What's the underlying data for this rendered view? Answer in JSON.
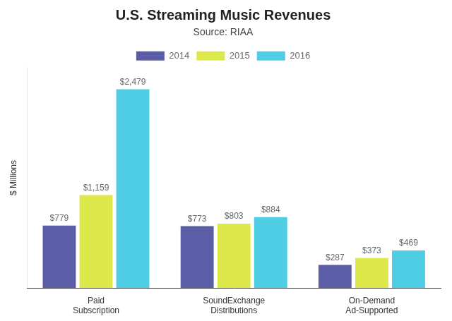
{
  "chart_data": {
    "type": "bar",
    "title": "U.S. Streaming Music Revenues",
    "subtitle": "Source: RIAA",
    "ylabel": "$ Millions",
    "categories": [
      "Paid\nSubscription",
      "SoundExchange\nDistributions",
      "On-Demand\nAd-Supported"
    ],
    "series": [
      {
        "name": "2014",
        "color": "#5b5ea6",
        "values": [
          779,
          773,
          287
        ],
        "value_labels": [
          "$779",
          "$773",
          "$287"
        ]
      },
      {
        "name": "2015",
        "color": "#dde84a",
        "values": [
          1159,
          803,
          373
        ],
        "value_labels": [
          "$1,159",
          "$803",
          "$373"
        ]
      },
      {
        "name": "2016",
        "color": "#4ecde4",
        "values": [
          2479,
          884,
          469
        ],
        "value_labels": [
          "$2,479",
          "$884",
          "$469"
        ]
      }
    ],
    "ylim": [
      0,
      2750
    ],
    "grid": false,
    "legend": "top",
    "data_labels": true,
    "tick_labels": "x"
  }
}
